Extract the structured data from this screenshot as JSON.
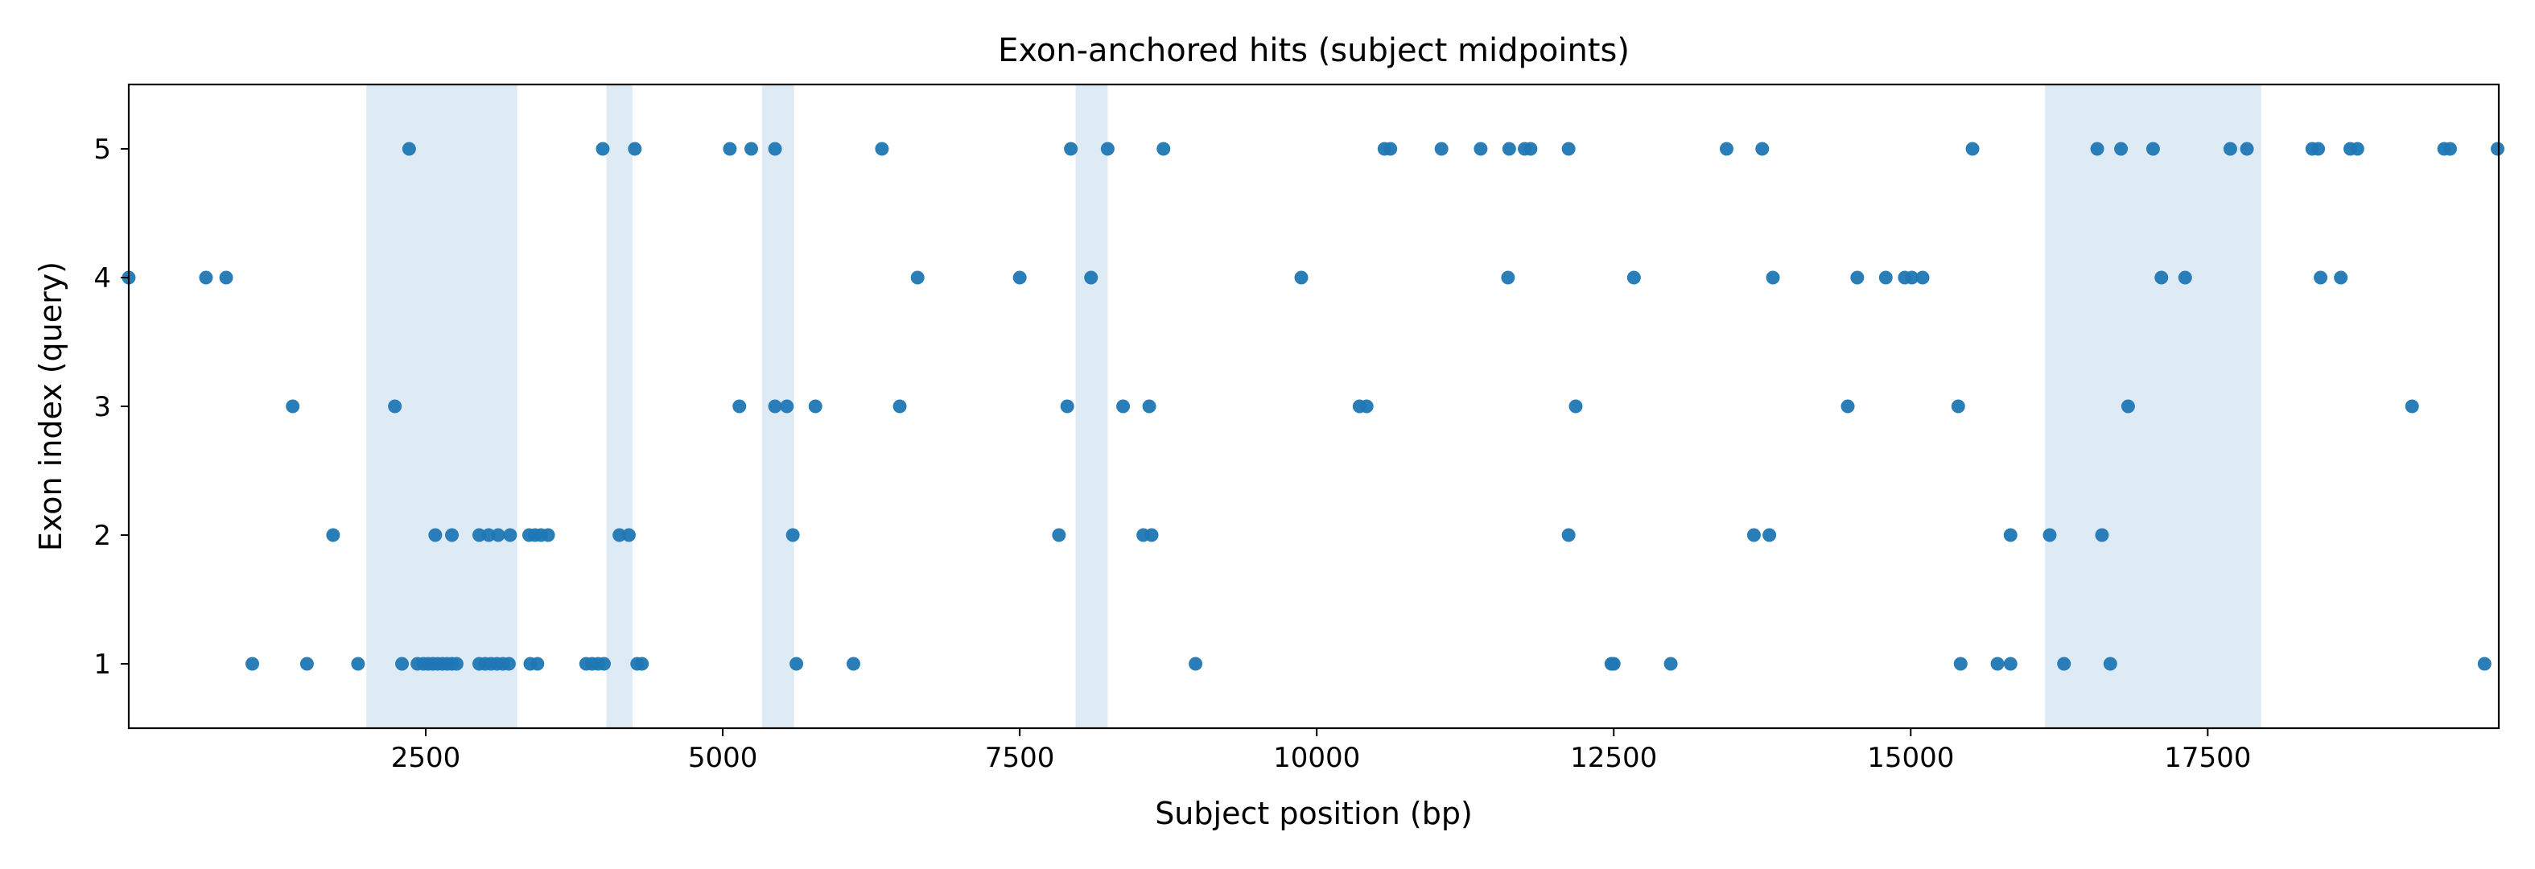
{
  "chart_data": {
    "type": "scatter",
    "title": "Exon-anchored hits (subject midpoints)",
    "xlabel": "Subject position (bp)",
    "ylabel": "Exon index (query)",
    "xlim": [
      0,
      19950
    ],
    "ylim": [
      0.5,
      5.5
    ],
    "xticks": [
      2500,
      5000,
      7500,
      10000,
      12500,
      15000,
      17500
    ],
    "xtick_labels": [
      "2500",
      "5000",
      "7500",
      "10000",
      "12500",
      "15000",
      "17500"
    ],
    "yticks": [
      1,
      2,
      3,
      4,
      5
    ],
    "ytick_labels": [
      "1",
      "2",
      "3",
      "4",
      "5"
    ],
    "grid": false,
    "point_color": "#1f77b4",
    "highlight_color": "#deebf5",
    "highlight_regions": [
      [
        2000,
        3270
      ],
      [
        4020,
        4240
      ],
      [
        5330,
        5600
      ],
      [
        7970,
        8240
      ],
      [
        16130,
        17950
      ]
    ],
    "series": [
      {
        "points": [
          [
            0,
            4
          ],
          [
            650,
            4
          ],
          [
            820,
            4
          ],
          [
            1380,
            3
          ],
          [
            1720,
            2
          ],
          [
            1040,
            1
          ],
          [
            1500,
            1
          ],
          [
            1930,
            1
          ],
          [
            2240,
            3
          ],
          [
            2360,
            5
          ],
          [
            2300,
            1
          ],
          [
            2430,
            1
          ],
          [
            2480,
            1
          ],
          [
            2520,
            1
          ],
          [
            2560,
            1
          ],
          [
            2600,
            1
          ],
          [
            2640,
            1
          ],
          [
            2680,
            1
          ],
          [
            2720,
            1
          ],
          [
            2760,
            1
          ],
          [
            2580,
            2
          ],
          [
            2720,
            2
          ],
          [
            2950,
            1
          ],
          [
            3000,
            1
          ],
          [
            3050,
            1
          ],
          [
            3100,
            1
          ],
          [
            3150,
            1
          ],
          [
            3200,
            1
          ],
          [
            2950,
            2
          ],
          [
            3030,
            2
          ],
          [
            3110,
            2
          ],
          [
            3210,
            2
          ],
          [
            3370,
            2
          ],
          [
            3420,
            2
          ],
          [
            3470,
            2
          ],
          [
            3530,
            2
          ],
          [
            3380,
            1
          ],
          [
            3440,
            1
          ],
          [
            3850,
            1
          ],
          [
            3900,
            1
          ],
          [
            3950,
            1
          ],
          [
            4000,
            1
          ],
          [
            4280,
            1
          ],
          [
            4320,
            1
          ],
          [
            3990,
            5
          ],
          [
            4260,
            5
          ],
          [
            4130,
            2
          ],
          [
            4210,
            2
          ],
          [
            5060,
            5
          ],
          [
            5240,
            5
          ],
          [
            5440,
            5
          ],
          [
            5140,
            3
          ],
          [
            5440,
            3
          ],
          [
            5540,
            3
          ],
          [
            5780,
            3
          ],
          [
            5590,
            2
          ],
          [
            5620,
            1
          ],
          [
            6100,
            1
          ],
          [
            6340,
            5
          ],
          [
            6490,
            3
          ],
          [
            6640,
            4
          ],
          [
            7500,
            4
          ],
          [
            7830,
            2
          ],
          [
            7900,
            3
          ],
          [
            7930,
            5
          ],
          [
            8100,
            4
          ],
          [
            8240,
            5
          ],
          [
            8370,
            3
          ],
          [
            8540,
            2
          ],
          [
            8610,
            2
          ],
          [
            8590,
            3
          ],
          [
            8710,
            5
          ],
          [
            8980,
            1
          ],
          [
            9870,
            4
          ],
          [
            10360,
            3
          ],
          [
            10420,
            3
          ],
          [
            10570,
            5
          ],
          [
            10620,
            5
          ],
          [
            11050,
            5
          ],
          [
            11380,
            5
          ],
          [
            11620,
            5
          ],
          [
            11750,
            5
          ],
          [
            11800,
            5
          ],
          [
            11610,
            4
          ],
          [
            12120,
            5
          ],
          [
            12120,
            2
          ],
          [
            12180,
            3
          ],
          [
            12480,
            1
          ],
          [
            12500,
            1
          ],
          [
            12670,
            4
          ],
          [
            12980,
            1
          ],
          [
            13450,
            5
          ],
          [
            13750,
            5
          ],
          [
            13680,
            2
          ],
          [
            13810,
            2
          ],
          [
            13840,
            4
          ],
          [
            14470,
            3
          ],
          [
            14550,
            4
          ],
          [
            14790,
            4
          ],
          [
            14950,
            4
          ],
          [
            15010,
            4
          ],
          [
            15100,
            4
          ],
          [
            15400,
            3
          ],
          [
            15420,
            1
          ],
          [
            15520,
            5
          ],
          [
            15730,
            1
          ],
          [
            15840,
            1
          ],
          [
            15840,
            2
          ],
          [
            16170,
            2
          ],
          [
            16290,
            1
          ],
          [
            16570,
            5
          ],
          [
            16610,
            2
          ],
          [
            16680,
            1
          ],
          [
            16770,
            5
          ],
          [
            16830,
            3
          ],
          [
            17040,
            5
          ],
          [
            17110,
            4
          ],
          [
            17310,
            4
          ],
          [
            17690,
            5
          ],
          [
            17830,
            5
          ],
          [
            18380,
            5
          ],
          [
            18430,
            5
          ],
          [
            18450,
            4
          ],
          [
            18620,
            4
          ],
          [
            18700,
            5
          ],
          [
            18760,
            5
          ],
          [
            19220,
            3
          ],
          [
            19490,
            5
          ],
          [
            19540,
            5
          ],
          [
            19830,
            1
          ],
          [
            19940,
            5
          ]
        ]
      }
    ]
  }
}
